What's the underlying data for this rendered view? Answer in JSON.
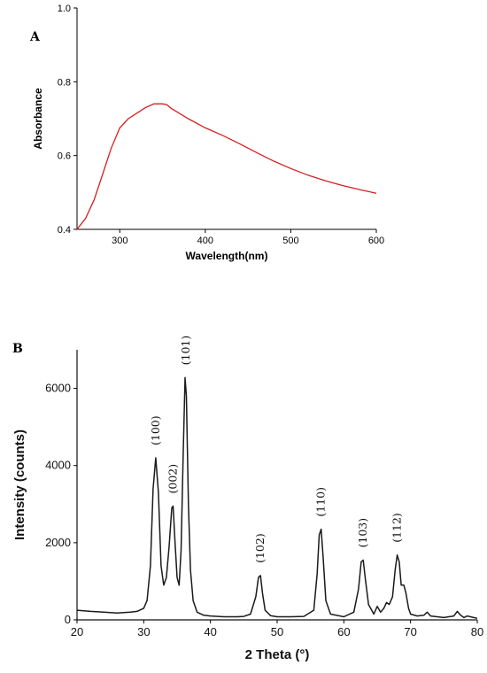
{
  "chart_data": [
    {
      "panel": "A",
      "type": "line",
      "xlabel": "Wavelength(nm)",
      "ylabel": "Absorbance",
      "xlim": [
        250,
        600
      ],
      "ylim": [
        0.4,
        1.0
      ],
      "xticks": [
        300,
        400,
        500,
        600
      ],
      "yticks": [
        0.4,
        0.6,
        0.8,
        1.0
      ],
      "grid": false,
      "series": [
        {
          "color": "#d42020",
          "x": [
            250,
            260,
            270,
            280,
            290,
            300,
            310,
            320,
            330,
            340,
            350,
            355,
            360,
            380,
            400,
            420,
            440,
            460,
            480,
            500,
            520,
            540,
            560,
            580,
            600
          ],
          "y": [
            0.4,
            0.43,
            0.48,
            0.55,
            0.62,
            0.675,
            0.7,
            0.715,
            0.73,
            0.74,
            0.74,
            0.738,
            0.728,
            0.7,
            0.675,
            0.655,
            0.632,
            0.608,
            0.585,
            0.565,
            0.547,
            0.532,
            0.519,
            0.508,
            0.498
          ]
        }
      ]
    },
    {
      "panel": "B",
      "type": "line",
      "xlabel": "2 Theta (°)",
      "ylabel": "Intensity (counts)",
      "xlim": [
        20,
        80
      ],
      "ylim": [
        0,
        7000
      ],
      "xticks": [
        20,
        30,
        40,
        50,
        60,
        70,
        80
      ],
      "yticks": [
        0,
        2000,
        4000,
        6000
      ],
      "grid": false,
      "series": [
        {
          "color": "#1a1a1a",
          "x": [
            20,
            22,
            24,
            26,
            28,
            29,
            30,
            30.5,
            31,
            31.4,
            31.8,
            32.2,
            32.6,
            33,
            33.4,
            33.8,
            34.2,
            34.4,
            34.7,
            35,
            35.3,
            35.6,
            35.9,
            36.2,
            36.4,
            36.7,
            37,
            37.4,
            38,
            39,
            40,
            42,
            44,
            45,
            46,
            46.8,
            47.2,
            47.5,
            47.8,
            48.2,
            49,
            50,
            52,
            54,
            55.5,
            56,
            56.3,
            56.6,
            56.9,
            57.3,
            58,
            60,
            61.5,
            62.2,
            62.6,
            62.9,
            63.2,
            63.7,
            64.5,
            65,
            65.5,
            66,
            66.4,
            66.8,
            67.3,
            67.7,
            68,
            68.3,
            68.6,
            69,
            69.3,
            69.7,
            70,
            71,
            72,
            72.5,
            73,
            75,
            76.5,
            77,
            77.5,
            78,
            78.5,
            80
          ],
          "y": [
            250,
            220,
            200,
            180,
            200,
            220,
            300,
            500,
            1400,
            3400,
            4200,
            3300,
            1400,
            900,
            1100,
            1900,
            2900,
            2950,
            2000,
            1100,
            900,
            1800,
            4200,
            6280,
            5800,
            3000,
            1300,
            500,
            200,
            120,
            100,
            80,
            80,
            90,
            150,
            600,
            1100,
            1150,
            700,
            250,
            110,
            80,
            80,
            90,
            250,
            1200,
            2200,
            2350,
            1600,
            500,
            150,
            80,
            200,
            800,
            1500,
            1550,
            1100,
            400,
            150,
            350,
            200,
            300,
            450,
            400,
            600,
            1300,
            1680,
            1500,
            900,
            900,
            700,
            300,
            150,
            100,
            120,
            200,
            100,
            60,
            100,
            220,
            120,
            60,
            100,
            40
          ]
        }
      ],
      "annotations": [
        {
          "text": "(100)",
          "x": 31.8,
          "y": 4200
        },
        {
          "text": "(002)",
          "x": 34.4,
          "y": 2950
        },
        {
          "text": "(101)",
          "x": 36.3,
          "y": 6280
        },
        {
          "text": "(102)",
          "x": 47.5,
          "y": 1150
        },
        {
          "text": "(110)",
          "x": 56.6,
          "y": 2350
        },
        {
          "text": "(103)",
          "x": 62.9,
          "y": 1550
        },
        {
          "text": "(112)",
          "x": 68.0,
          "y": 1680
        }
      ]
    }
  ]
}
